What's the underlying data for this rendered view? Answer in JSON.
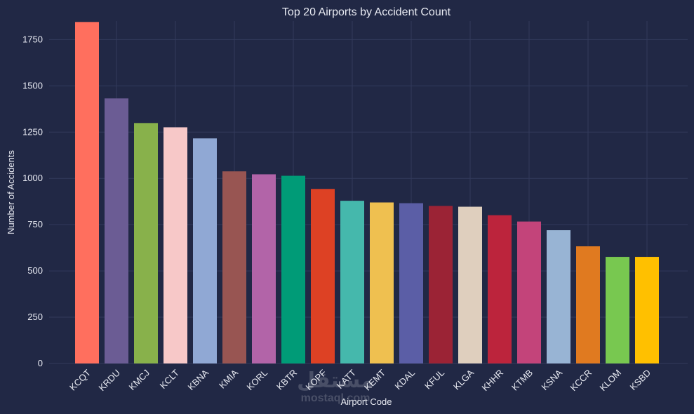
{
  "chart_data": {
    "type": "bar",
    "title": "Top 20 Airports by Accident Count",
    "xlabel": "Airport Code",
    "ylabel": "Number of Accidents",
    "ylim": [
      0,
      1850
    ],
    "yticks": [
      0,
      250,
      500,
      750,
      1000,
      1250,
      1500,
      1750
    ],
    "grid": true,
    "categories": [
      "KCQT",
      "KRDU",
      "KMCJ",
      "KCLT",
      "KBNA",
      "KMIA",
      "KORL",
      "KBTR",
      "KOPF",
      "KATT",
      "KEMT",
      "KDAL",
      "KFUL",
      "KLGA",
      "KHHR",
      "KTMB",
      "KSNA",
      "KCCR",
      "KLOM",
      "KSBD"
    ],
    "values": [
      1845,
      1432,
      1299,
      1276,
      1216,
      1038,
      1022,
      1014,
      943,
      879,
      870,
      866,
      851,
      847,
      801,
      767,
      720,
      633,
      576,
      576
    ],
    "colors": [
      "#ff6f5e",
      "#6b5c94",
      "#88b14b",
      "#f7c8c8",
      "#90a8d4",
      "#985552",
      "#b264a8",
      "#009b77",
      "#dd4124",
      "#45b8ac",
      "#efc050",
      "#5b5ea6",
      "#9b2335",
      "#dfcfbe",
      "#bc243c",
      "#c3447a",
      "#98b4d4",
      "#e07a20",
      "#78c850",
      "#ffc000"
    ]
  },
  "watermark": {
    "text": "mostaql.com",
    "logo_text": "مستقل"
  }
}
